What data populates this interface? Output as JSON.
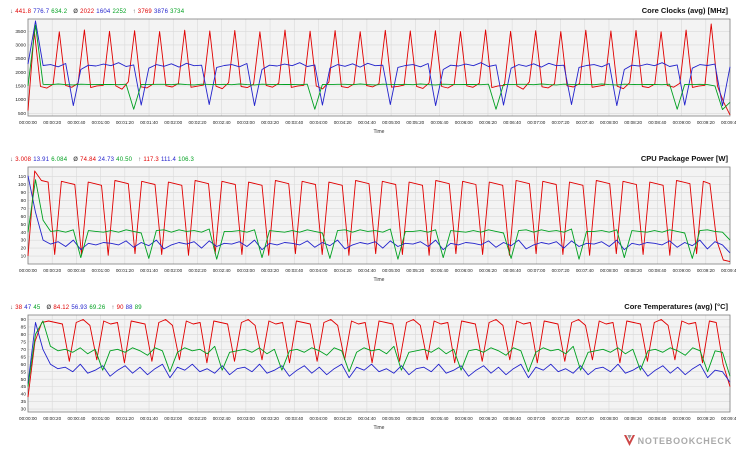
{
  "stat_symbols": {
    "min": "↓",
    "avg": "Ø",
    "max": "↑"
  },
  "series_colors": [
    "#e00000",
    "#2323cc",
    "#00a020"
  ],
  "time_axis": {
    "label": "Time",
    "ticks": [
      "00:00:00",
      "00:00:20",
      "00:00:40",
      "00:01:00",
      "00:01:20",
      "00:01:40",
      "00:02:00",
      "00:02:20",
      "00:02:40",
      "00:03:00",
      "00:03:20",
      "00:03:40",
      "00:04:00",
      "00:04:20",
      "00:04:40",
      "00:05:00",
      "00:05:20",
      "00:05:40",
      "00:06:00",
      "00:06:20",
      "00:06:40",
      "00:07:00",
      "00:07:20",
      "00:07:40",
      "00:08:00",
      "00:08:20",
      "00:08:40",
      "00:09:00",
      "00:09:20",
      "00:09:40"
    ]
  },
  "watermark": {
    "text": "NOTEBOOKCHECK"
  },
  "chart_data": [
    {
      "type": "line",
      "title": "Core Clocks (avg) [MHz]",
      "xlabel": "Time",
      "grid": true,
      "legend": "none",
      "ylim": [
        400,
        3950
      ],
      "y_ticks": [
        3500,
        3000,
        2500,
        2000,
        1500,
        1000,
        500
      ],
      "stats": {
        "min": [
          "441.8",
          "776.7",
          "634.2"
        ],
        "avg": [
          "2022",
          "1604",
          "2252"
        ],
        "max": [
          "3769",
          "3876",
          "3734"
        ]
      },
      "series": [
        {
          "name": "red",
          "color": "#e00000",
          "values": [
            600,
            3520,
            1480,
            1420,
            1560,
            3480,
            1520,
            1450,
            1600,
            3550,
            1440,
            1500,
            1520,
            3500,
            1500,
            1380,
            1650,
            3520,
            1470,
            1430,
            1580,
            3490,
            1510,
            1460,
            1590,
            3540,
            1450,
            1490,
            1530,
            3510,
            1490,
            1400,
            1620,
            3530,
            1480,
            1440,
            1570,
            3480,
            1520,
            1455,
            1595,
            3545,
            1445,
            1495,
            1525,
            3505,
            1495,
            1390,
            1640,
            3525,
            1475,
            1435,
            1575,
            3485,
            1515,
            1465,
            1585,
            3535,
            1455,
            1485,
            1535,
            3515,
            1485,
            1410,
            1610,
            3520,
            1480,
            1425,
            1565,
            3490,
            1505,
            1450,
            1600,
            3550,
            1440,
            1500,
            1520,
            3500,
            1500,
            1380,
            1650,
            3520,
            1470,
            1430,
            1580,
            3490,
            1510,
            1460,
            1590,
            3540,
            1450,
            1490,
            1530,
            3510,
            1490,
            1400,
            1620,
            3530,
            1480,
            1440,
            1570,
            3480,
            1520,
            1455,
            1595,
            3545,
            1445,
            1495,
            1525,
            3769,
            1495,
            900,
            442
          ]
        },
        {
          "name": "blue",
          "color": "#2323cc",
          "values": [
            2300,
            3876,
            2250,
            2280,
            2200,
            2320,
            780,
            2100,
            2260,
            2230,
            2300,
            2240,
            2350,
            2210,
            2270,
            800,
            2150,
            2280,
            2220,
            2310,
            2190,
            2330,
            2240,
            2260,
            820,
            2180,
            2250,
            2280,
            2200,
            2320,
            780,
            2100,
            2260,
            2230,
            2300,
            2240,
            2350,
            2210,
            2270,
            800,
            2150,
            2280,
            2220,
            2310,
            2190,
            2330,
            2240,
            2260,
            820,
            2180,
            2250,
            2280,
            2200,
            2320,
            780,
            2100,
            2260,
            2230,
            2300,
            2240,
            2350,
            2210,
            2270,
            800,
            2150,
            2280,
            2220,
            2310,
            2190,
            2330,
            2240,
            2260,
            820,
            2180,
            2250,
            2280,
            2200,
            2320,
            780,
            2100,
            2260,
            2230,
            2300,
            2240,
            2350,
            2210,
            2270,
            800,
            2150,
            2280,
            2250,
            2300,
            777,
            2200
          ]
        },
        {
          "name": "green",
          "color": "#00a020",
          "values": [
            1500,
            3734,
            1560,
            1545,
            1570,
            1550,
            1540,
            1565,
            1555,
            1548,
            1552,
            1558,
            1544,
            1562,
            650,
            1556,
            1550,
            1560,
            1560,
            1545,
            1570,
            1550,
            1540,
            1565,
            1555,
            1548,
            1560,
            1545,
            1570,
            1550,
            1540,
            1565,
            1555,
            1548,
            1552,
            1558,
            1544,
            1562,
            650,
            1556,
            1550,
            1560,
            1560,
            1545,
            1570,
            1550,
            1540,
            1565,
            1555,
            1548,
            1560,
            1545,
            1570,
            1550,
            1540,
            1565,
            1555,
            1548,
            1552,
            1558,
            1544,
            1562,
            650,
            1556,
            1550,
            1560,
            1560,
            1545,
            1570,
            1550,
            1540,
            1565,
            1555,
            1548,
            1560,
            1545,
            1570,
            1550,
            1540,
            1565,
            1555,
            1548,
            1552,
            1558,
            1544,
            1562,
            650,
            1556,
            1550,
            1560,
            1550,
            1500,
            634,
            900
          ]
        }
      ]
    },
    {
      "type": "line",
      "title": "CPU Package Power [W]",
      "xlabel": "Time",
      "grid": true,
      "legend": "none",
      "ylim": [
        0,
        122
      ],
      "y_ticks": [
        110,
        100,
        90,
        80,
        70,
        60,
        50,
        40,
        30,
        20,
        10
      ],
      "stats": {
        "min": [
          "3.008",
          "13.91",
          "6.084"
        ],
        "avg": [
          "74.84",
          "24.73",
          "40.50"
        ],
        "max": [
          "117.3",
          "111.4",
          "106.3"
        ]
      },
      "series": [
        {
          "name": "red",
          "color": "#e00000",
          "values": [
            10,
            117,
            105,
            103,
            12,
            104,
            102,
            100,
            12,
            103,
            101,
            99,
            11,
            105,
            103,
            101,
            13,
            104,
            102,
            100,
            12,
            103,
            101,
            99,
            11,
            105,
            103,
            101,
            13,
            104,
            102,
            100,
            12,
            103,
            101,
            99,
            11,
            105,
            103,
            101,
            13,
            104,
            102,
            100,
            12,
            103,
            101,
            99,
            11,
            105,
            103,
            101,
            13,
            104,
            102,
            100,
            12,
            103,
            101,
            99,
            11,
            105,
            103,
            101,
            13,
            104,
            102,
            100,
            12,
            103,
            101,
            99,
            11,
            105,
            103,
            101,
            13,
            104,
            102,
            100,
            12,
            103,
            101,
            99,
            11,
            105,
            103,
            101,
            13,
            104,
            102,
            100,
            12,
            103,
            101,
            99,
            11,
            105,
            103,
            101,
            13,
            104,
            101,
            30,
            5,
            3
          ]
        },
        {
          "name": "blue",
          "color": "#2323cc",
          "values": [
            111,
            65,
            30,
            25,
            28,
            22,
            30,
            18,
            26,
            24,
            27,
            26,
            24,
            29,
            21,
            27,
            23,
            30,
            19,
            24,
            27,
            25,
            28,
            20,
            29,
            22,
            26,
            25,
            28,
            22,
            30,
            18,
            26,
            24,
            27,
            26,
            24,
            29,
            21,
            27,
            23,
            30,
            19,
            24,
            27,
            25,
            28,
            20,
            29,
            22,
            26,
            25,
            28,
            22,
            30,
            18,
            26,
            24,
            27,
            26,
            24,
            29,
            21,
            27,
            23,
            30,
            19,
            24,
            27,
            25,
            28,
            20,
            29,
            22,
            26,
            25,
            28,
            22,
            30,
            18,
            26,
            24,
            27,
            26,
            24,
            29,
            21,
            27,
            23,
            30,
            19,
            28,
            24,
            14
          ]
        },
        {
          "name": "green",
          "color": "#00a020",
          "values": [
            40,
            106,
            55,
            41,
            42,
            40,
            43,
            8,
            42,
            41,
            40,
            42,
            40,
            43,
            41,
            39,
            7,
            42,
            43,
            40,
            43,
            41,
            42,
            40,
            44,
            6,
            41,
            41,
            42,
            40,
            43,
            8,
            42,
            41,
            40,
            42,
            40,
            43,
            41,
            39,
            7,
            42,
            43,
            40,
            43,
            41,
            42,
            40,
            44,
            6,
            41,
            41,
            42,
            40,
            43,
            8,
            42,
            41,
            40,
            42,
            40,
            43,
            41,
            39,
            7,
            42,
            43,
            40,
            43,
            41,
            42,
            40,
            44,
            6,
            41,
            41,
            42,
            40,
            43,
            8,
            42,
            41,
            40,
            42,
            40,
            43,
            41,
            39,
            7,
            42,
            43,
            41,
            40,
            30
          ]
        }
      ]
    },
    {
      "type": "line",
      "title": "Core Temperatures (avg) [°C]",
      "xlabel": "Time",
      "grid": true,
      "legend": "none",
      "ylim": [
        28,
        93
      ],
      "y_ticks": [
        90,
        85,
        80,
        75,
        70,
        65,
        60,
        55,
        50,
        45,
        40,
        35,
        30
      ],
      "stats": {
        "min": [
          "38",
          "47",
          "45"
        ],
        "avg": [
          "84.12",
          "56.93",
          "69.26"
        ],
        "max": [
          "90",
          "88",
          "89"
        ]
      },
      "series": [
        {
          "name": "red",
          "color": "#e00000",
          "values": [
            38,
            75,
            88,
            89,
            88,
            87,
            62,
            88,
            90,
            86,
            63,
            89,
            87,
            88,
            61,
            89,
            88,
            87,
            62,
            88,
            90,
            86,
            63,
            89,
            87,
            88,
            61,
            89,
            88,
            87,
            62,
            88,
            90,
            86,
            63,
            89,
            87,
            88,
            61,
            89,
            88,
            87,
            62,
            88,
            90,
            86,
            63,
            89,
            87,
            88,
            61,
            89,
            88,
            87,
            62,
            88,
            90,
            86,
            63,
            89,
            87,
            88,
            61,
            89,
            88,
            87,
            62,
            88,
            90,
            86,
            63,
            89,
            87,
            88,
            61,
            89,
            88,
            87,
            62,
            88,
            90,
            86,
            63,
            89,
            87,
            88,
            61,
            89,
            88,
            87,
            62,
            88,
            90,
            86,
            63,
            89,
            87,
            88,
            61,
            89,
            88,
            60,
            45
          ]
        },
        {
          "name": "blue",
          "color": "#2323cc",
          "values": [
            47,
            88,
            70,
            60,
            57,
            58,
            55,
            60,
            54,
            56,
            59,
            52,
            56,
            59,
            54,
            58,
            53,
            57,
            60,
            51,
            58,
            56,
            60,
            55,
            57,
            54,
            59,
            53,
            57,
            58,
            55,
            60,
            54,
            56,
            59,
            52,
            56,
            59,
            54,
            58,
            53,
            57,
            60,
            51,
            58,
            56,
            60,
            55,
            57,
            54,
            59,
            53,
            57,
            58,
            55,
            60,
            54,
            56,
            59,
            52,
            56,
            59,
            54,
            58,
            53,
            57,
            60,
            51,
            58,
            56,
            60,
            55,
            57,
            54,
            59,
            53,
            57,
            58,
            55,
            60,
            54,
            56,
            59,
            52,
            56,
            59,
            54,
            58,
            53,
            57,
            60,
            51,
            56,
            55,
            48
          ]
        },
        {
          "name": "green",
          "color": "#00a020",
          "values": [
            45,
            80,
            89,
            72,
            69,
            70,
            68,
            71,
            67,
            70,
            56,
            69,
            70,
            68,
            71,
            69,
            66,
            71,
            69,
            55,
            68,
            71,
            69,
            70,
            67,
            72,
            56,
            68,
            69,
            70,
            68,
            71,
            67,
            70,
            56,
            69,
            70,
            68,
            71,
            69,
            66,
            71,
            69,
            55,
            68,
            71,
            69,
            70,
            67,
            72,
            56,
            68,
            69,
            70,
            68,
            71,
            67,
            70,
            56,
            69,
            70,
            68,
            71,
            69,
            66,
            71,
            69,
            55,
            68,
            71,
            69,
            70,
            67,
            72,
            56,
            68,
            69,
            70,
            68,
            71,
            67,
            70,
            56,
            69,
            70,
            68,
            71,
            69,
            66,
            71,
            69,
            55,
            69,
            68,
            52
          ]
        }
      ]
    }
  ]
}
